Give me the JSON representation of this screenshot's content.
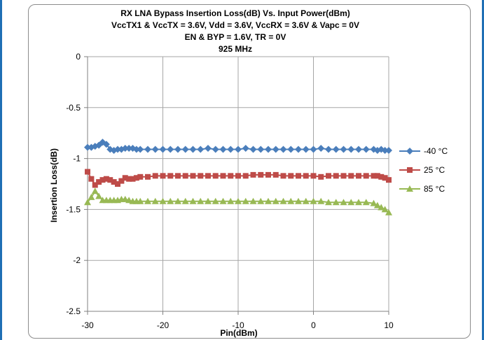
{
  "chart_data": {
    "type": "line",
    "title_lines": [
      "RX LNA Bypass Insertion Loss(dB) Vs. Input Power(dBm)",
      "VccTX1 & VccTX = 3.6V, Vdd = 3.6V, VccRX  = 3.6V & Vapc = 0V",
      "EN & BYP = 1.6V, TR = 0V",
      "925 MHz"
    ],
    "xlabel": "Pin(dBm)",
    "ylabel": "Insertion Loss(dB)",
    "xlim": [
      -30,
      10
    ],
    "ylim": [
      -2.5,
      0
    ],
    "x_ticks": [
      -30,
      -20,
      -10,
      0,
      10
    ],
    "y_ticks": [
      0,
      -0.5,
      -1,
      -1.5,
      -2,
      -2.5
    ],
    "grid": true,
    "legend_position": "right",
    "x": [
      -30,
      -29.5,
      -29,
      -28.5,
      -28,
      -27.5,
      -27,
      -26.5,
      -26,
      -25.5,
      -25,
      -24.5,
      -24,
      -23.5,
      -23,
      -22,
      -21,
      -20,
      -19,
      -18,
      -17,
      -16,
      -15,
      -14,
      -13,
      -12,
      -11,
      -10,
      -9,
      -8,
      -7,
      -6,
      -5,
      -4,
      -3,
      -2,
      -1,
      0,
      1,
      2,
      3,
      4,
      5,
      6,
      7,
      8,
      8.5,
      9,
      9.5,
      10
    ],
    "series": [
      {
        "name": "-40 °C",
        "color": "#4a7ebb",
        "marker": "diamond",
        "values": [
          -0.89,
          -0.89,
          -0.88,
          -0.87,
          -0.84,
          -0.86,
          -0.91,
          -0.92,
          -0.91,
          -0.91,
          -0.9,
          -0.9,
          -0.9,
          -0.91,
          -0.91,
          -0.91,
          -0.91,
          -0.91,
          -0.91,
          -0.91,
          -0.91,
          -0.91,
          -0.91,
          -0.9,
          -0.91,
          -0.91,
          -0.91,
          -0.91,
          -0.9,
          -0.91,
          -0.91,
          -0.91,
          -0.91,
          -0.91,
          -0.91,
          -0.91,
          -0.91,
          -0.91,
          -0.9,
          -0.91,
          -0.91,
          -0.91,
          -0.91,
          -0.91,
          -0.91,
          -0.91,
          -0.92,
          -0.91,
          -0.92,
          -0.92
        ]
      },
      {
        "name": "25 °C",
        "color": "#be4b48",
        "marker": "square",
        "values": [
          -1.13,
          -1.2,
          -1.26,
          -1.23,
          -1.21,
          -1.2,
          -1.21,
          -1.23,
          -1.25,
          -1.22,
          -1.19,
          -1.2,
          -1.2,
          -1.19,
          -1.18,
          -1.18,
          -1.17,
          -1.17,
          -1.17,
          -1.17,
          -1.17,
          -1.17,
          -1.17,
          -1.17,
          -1.17,
          -1.17,
          -1.17,
          -1.17,
          -1.17,
          -1.16,
          -1.16,
          -1.16,
          -1.16,
          -1.17,
          -1.17,
          -1.17,
          -1.17,
          -1.17,
          -1.18,
          -1.17,
          -1.17,
          -1.17,
          -1.17,
          -1.17,
          -1.17,
          -1.17,
          -1.17,
          -1.18,
          -1.19,
          -1.21
        ]
      },
      {
        "name": "85 °C",
        "color": "#98b954",
        "marker": "triangle",
        "values": [
          -1.43,
          -1.38,
          -1.32,
          -1.37,
          -1.41,
          -1.41,
          -1.41,
          -1.41,
          -1.41,
          -1.4,
          -1.4,
          -1.41,
          -1.42,
          -1.42,
          -1.42,
          -1.42,
          -1.42,
          -1.42,
          -1.42,
          -1.42,
          -1.42,
          -1.42,
          -1.42,
          -1.42,
          -1.42,
          -1.42,
          -1.42,
          -1.42,
          -1.42,
          -1.42,
          -1.42,
          -1.42,
          -1.42,
          -1.42,
          -1.42,
          -1.42,
          -1.42,
          -1.42,
          -1.42,
          -1.43,
          -1.43,
          -1.43,
          -1.43,
          -1.43,
          -1.43,
          -1.44,
          -1.46,
          -1.48,
          -1.5,
          -1.53
        ]
      }
    ]
  }
}
